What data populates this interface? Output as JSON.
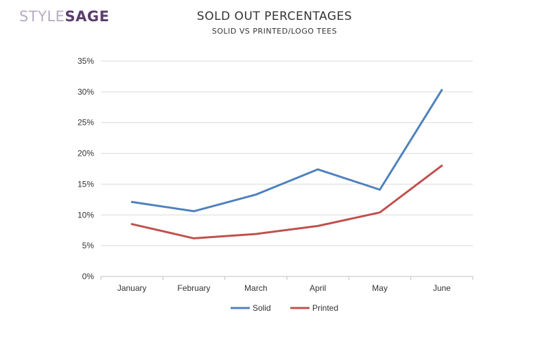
{
  "logo": {
    "part1": "STYLE",
    "part2": "SAGE"
  },
  "chart_data": {
    "type": "line",
    "title": "SOLD OUT PERCENTAGES",
    "subtitle": "SOLID VS PRINTED/LOGO TEES",
    "xlabel": "",
    "ylabel": "",
    "categories": [
      "January",
      "February",
      "March",
      "April",
      "May",
      "June"
    ],
    "ylim": [
      0,
      35
    ],
    "yticks": [
      0,
      5,
      10,
      15,
      20,
      25,
      30,
      35
    ],
    "ytick_labels": [
      "0%",
      "5%",
      "10%",
      "15%",
      "20%",
      "25%",
      "30%",
      "35%"
    ],
    "grid": true,
    "legend_position": "bottom",
    "series": [
      {
        "name": "Solid",
        "color": "#4f81bd",
        "values": [
          12.1,
          10.6,
          13.3,
          17.4,
          14.1,
          30.3
        ]
      },
      {
        "name": "Printed",
        "color": "#c0504d",
        "values": [
          8.5,
          6.2,
          6.9,
          8.2,
          10.4,
          18.0
        ]
      }
    ]
  }
}
